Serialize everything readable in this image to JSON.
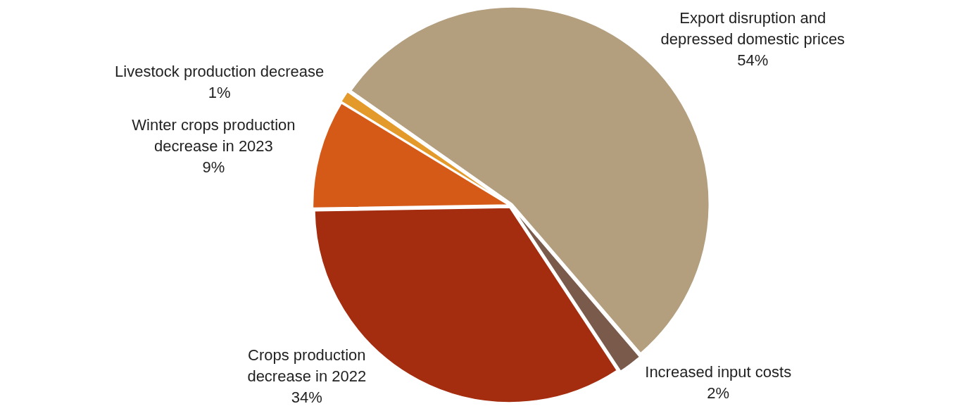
{
  "chart_data": {
    "type": "pie",
    "categories": [
      "Export disruption and depressed domestic prices",
      "Increased input costs",
      "Crops production decrease in 2022",
      "Winter crops production decrease in 2023",
      "Livestock production decrease"
    ],
    "values": [
      54,
      2,
      34,
      9,
      1
    ],
    "colors": [
      "#b39e7e",
      "#7a5a4a",
      "#a52d0f",
      "#d55a17",
      "#e49a2a"
    ],
    "value_labels": [
      "54%",
      "2%",
      "34%",
      "9%",
      "1%"
    ],
    "legend": false
  }
}
